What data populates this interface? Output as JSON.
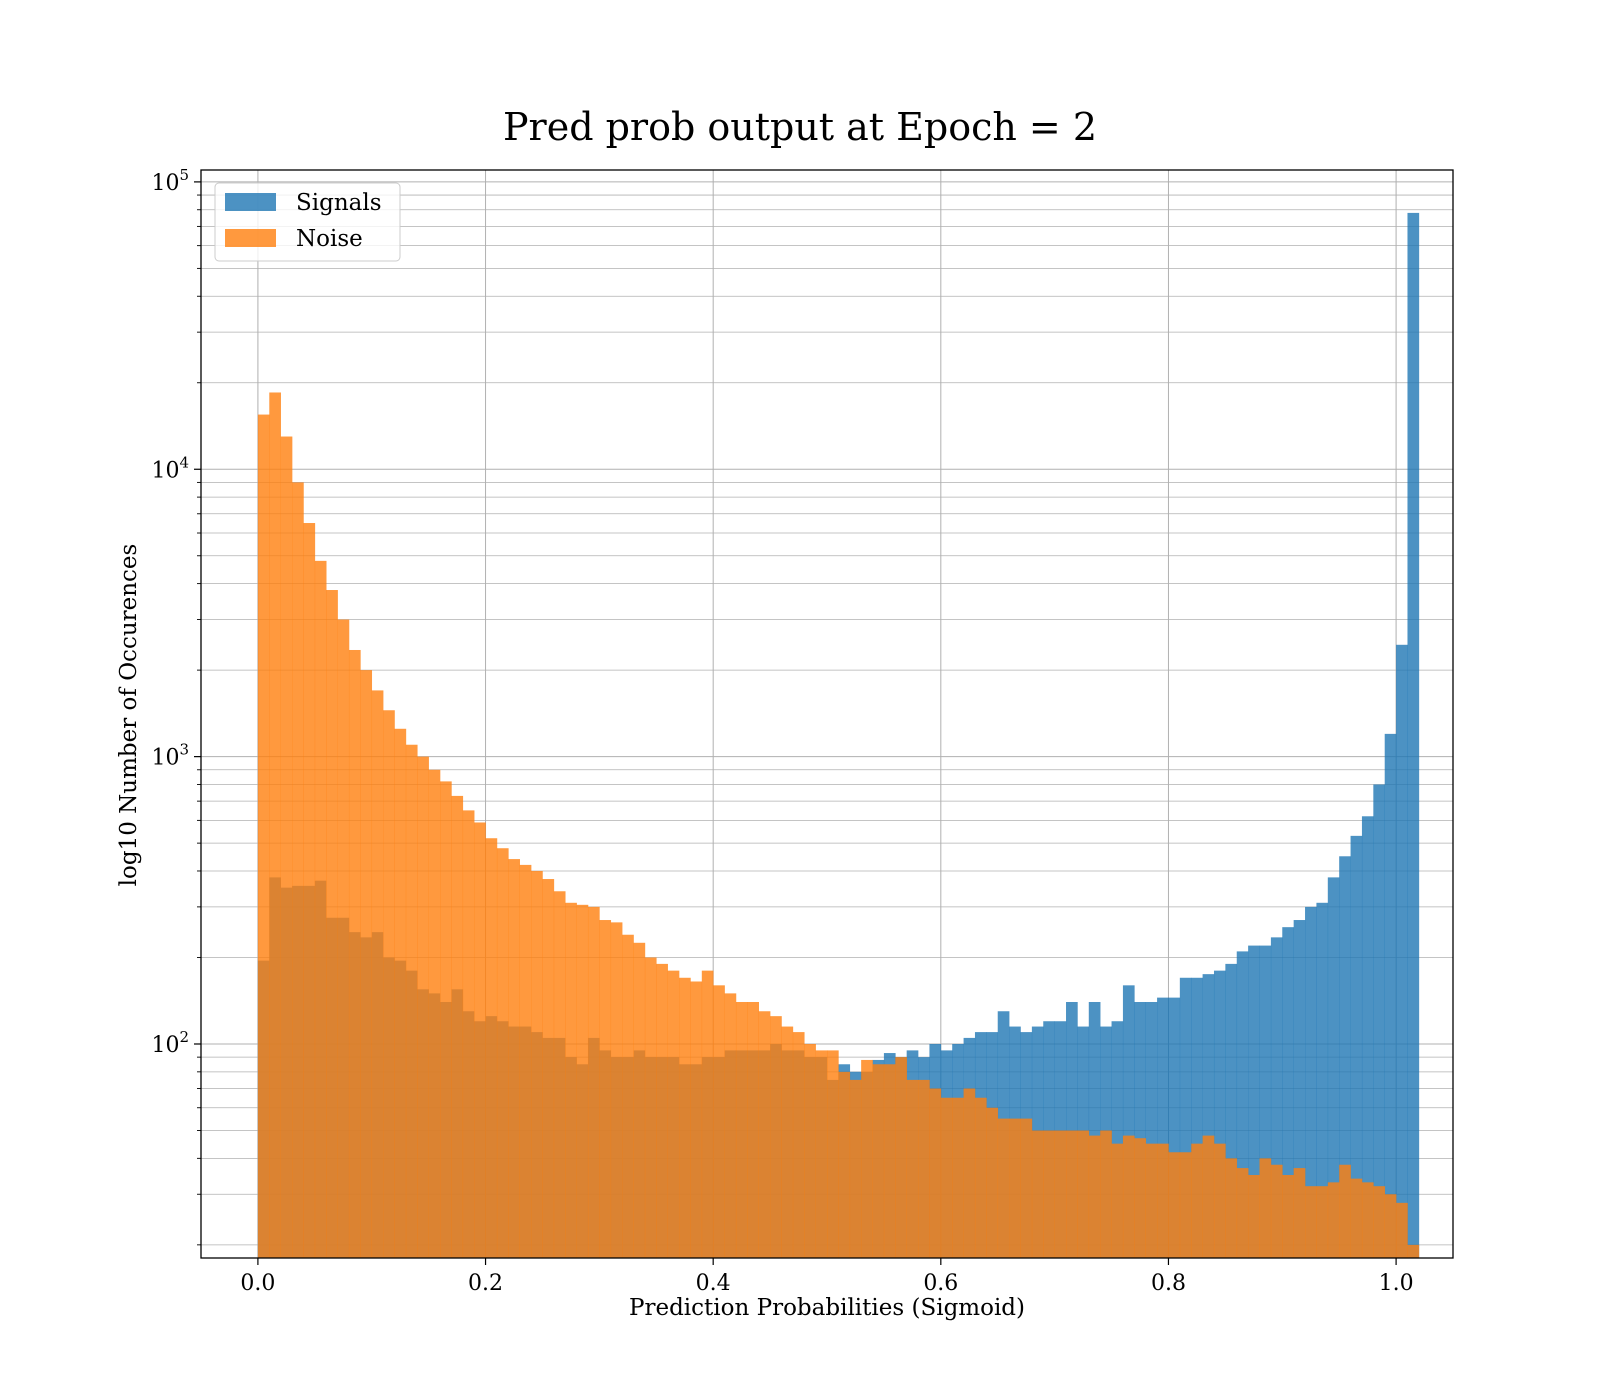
{
  "chart_data": {
    "type": "bar",
    "title": "Pred prob output at Epoch = 2",
    "xlabel": "Prediction Probabilities (Sigmoid)",
    "ylabel": "log10 Number of Occurences",
    "xlim": [
      -0.05,
      1.05
    ],
    "ylim": [
      18,
      110000
    ],
    "yscale": "log",
    "grid": true,
    "legend_position": "top-left",
    "x_ticks": [
      {
        "value": 0.0,
        "label": "0.0"
      },
      {
        "value": 0.2,
        "label": "0.2"
      },
      {
        "value": 0.4,
        "label": "0.4"
      },
      {
        "value": 0.6,
        "label": "0.6"
      },
      {
        "value": 0.8,
        "label": "0.8"
      },
      {
        "value": 1.0,
        "label": "1.0"
      }
    ],
    "y_ticks": [
      {
        "value": 100,
        "base": "10",
        "exp": "2"
      },
      {
        "value": 1000,
        "base": "10",
        "exp": "3"
      },
      {
        "value": 10000,
        "base": "10",
        "exp": "4"
      },
      {
        "value": 100000,
        "base": "10",
        "exp": "5"
      }
    ],
    "bin_start": 0.0,
    "bin_width": 0.01,
    "series": [
      {
        "name": "Signals",
        "color": "#1f77b4",
        "opacity": 0.8,
        "values": [
          195,
          380,
          350,
          355,
          355,
          370,
          275,
          275,
          245,
          235,
          245,
          200,
          195,
          180,
          155,
          150,
          140,
          155,
          130,
          120,
          125,
          120,
          115,
          115,
          110,
          105,
          105,
          90,
          85,
          105,
          95,
          90,
          90,
          95,
          90,
          90,
          90,
          85,
          85,
          90,
          90,
          95,
          95,
          95,
          95,
          100,
          95,
          95,
          90,
          90,
          75,
          85,
          80,
          80,
          88,
          93,
          90,
          95,
          90,
          100,
          95,
          100,
          105,
          110,
          110,
          130,
          115,
          110,
          115,
          120,
          120,
          140,
          115,
          140,
          115,
          120,
          160,
          140,
          140,
          145,
          145,
          170,
          170,
          175,
          180,
          190,
          210,
          220,
          220,
          235,
          255,
          270,
          300,
          310,
          380,
          450,
          530,
          620,
          800,
          1200,
          2450,
          78000
        ]
      },
      {
        "name": "Noise",
        "color": "#ff7f0e",
        "opacity": 0.8,
        "values": [
          15500,
          18500,
          13000,
          9000,
          6500,
          4800,
          3800,
          3000,
          2350,
          2000,
          1700,
          1450,
          1250,
          1100,
          1000,
          900,
          820,
          730,
          650,
          590,
          520,
          480,
          440,
          420,
          400,
          375,
          340,
          310,
          305,
          300,
          270,
          265,
          240,
          225,
          200,
          190,
          180,
          170,
          165,
          180,
          160,
          150,
          140,
          140,
          130,
          125,
          115,
          110,
          100,
          95,
          95,
          80,
          75,
          88,
          85,
          85,
          90,
          75,
          75,
          70,
          65,
          65,
          70,
          65,
          60,
          55,
          55,
          55,
          50,
          50,
          50,
          50,
          50,
          48,
          50,
          45,
          48,
          47,
          45,
          45,
          42,
          42,
          45,
          48,
          45,
          40,
          37,
          35,
          40,
          38,
          35,
          37,
          32,
          32,
          33,
          38,
          34,
          33,
          32,
          30,
          28,
          20
        ]
      }
    ]
  }
}
